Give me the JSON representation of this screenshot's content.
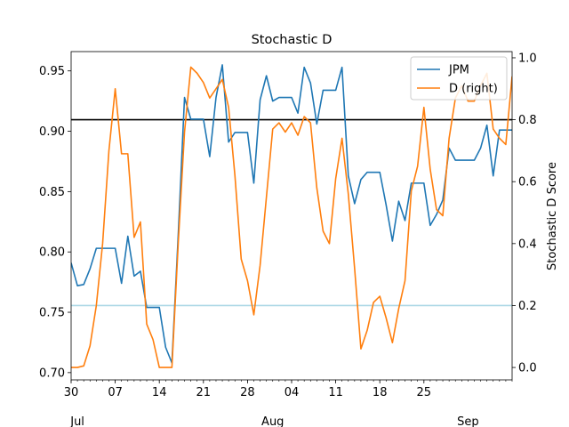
{
  "chart_data": {
    "type": "line",
    "title": "Stochastic D",
    "xlabel": "",
    "ylabel_left": "",
    "ylabel_right": "Stochastic D Score",
    "x_ticks": [
      {
        "day": 0,
        "label": "30"
      },
      {
        "day": 7,
        "label": "07"
      },
      {
        "day": 14,
        "label": "14"
      },
      {
        "day": 21,
        "label": "21"
      },
      {
        "day": 28,
        "label": "28"
      },
      {
        "day": 35,
        "label": "04"
      },
      {
        "day": 42,
        "label": "11"
      },
      {
        "day": 49,
        "label": "18"
      },
      {
        "day": 56,
        "label": "25"
      }
    ],
    "month_labels": [
      {
        "day": 1,
        "label": "Jul"
      },
      {
        "day": 32,
        "label": "Aug"
      },
      {
        "day": 63,
        "label": "Sep"
      }
    ],
    "xlim": [
      0,
      70
    ],
    "y_left": {
      "lim": [
        0.694,
        0.966
      ],
      "ticks": [
        0.7,
        0.75,
        0.8,
        0.85,
        0.9,
        0.95
      ],
      "tick_labels": [
        "0.70",
        "0.75",
        "0.80",
        "0.85",
        "0.90",
        "0.95"
      ]
    },
    "y_right": {
      "lim": [
        -0.04,
        1.02
      ],
      "ticks": [
        0.0,
        0.2,
        0.4,
        0.6,
        0.8,
        1.0
      ],
      "tick_labels": [
        "0.0",
        "0.2",
        "0.4",
        "0.6",
        "0.8",
        "1.0"
      ]
    },
    "hlines": [
      {
        "axis": "right",
        "value": 0.8,
        "color": "#000000"
      },
      {
        "axis": "right",
        "value": 0.2,
        "color": "#add8e6"
      }
    ],
    "legend": {
      "position": "top-right",
      "entries": [
        "JPM",
        "D (right)"
      ]
    },
    "series": [
      {
        "name": "JPM",
        "axis": "left",
        "color": "#1f77b4",
        "x": [
          0,
          1,
          2,
          3,
          4,
          5,
          6,
          7,
          8,
          9,
          10,
          11,
          12,
          13,
          14,
          15,
          16,
          17,
          18,
          19,
          20,
          21,
          22,
          23,
          24,
          25,
          26,
          27,
          28,
          29,
          30,
          31,
          32,
          33,
          34,
          35,
          36,
          37,
          38,
          39,
          40,
          41,
          42,
          43,
          44,
          45,
          46,
          47,
          48,
          49,
          50,
          51,
          52,
          53,
          54,
          55,
          56,
          57,
          58,
          59,
          60,
          61,
          62,
          63,
          64,
          65,
          66,
          67,
          68,
          69,
          70
        ],
        "values": [
          0.791,
          0.772,
          0.773,
          0.786,
          0.803,
          0.803,
          0.803,
          0.803,
          0.774,
          0.813,
          0.78,
          0.784,
          0.754,
          0.754,
          0.754,
          0.721,
          0.708,
          0.814,
          0.928,
          0.91,
          0.91,
          0.91,
          0.879,
          0.928,
          0.955,
          0.891,
          0.899,
          0.899,
          0.899,
          0.857,
          0.926,
          0.946,
          0.925,
          0.928,
          0.928,
          0.928,
          0.915,
          0.953,
          0.94,
          0.906,
          0.934,
          0.934,
          0.934,
          0.953,
          0.863,
          0.84,
          0.86,
          0.866,
          0.866,
          0.866,
          0.839,
          0.809,
          0.842,
          0.826,
          0.857,
          0.857,
          0.857,
          0.822,
          0.831,
          0.843,
          0.886,
          0.876,
          0.876,
          0.876,
          0.876,
          0.886,
          0.905,
          0.863,
          0.901,
          0.901,
          0.901
        ]
      },
      {
        "name": "D (right)",
        "axis": "right",
        "color": "#ff7f0e",
        "x": [
          0,
          1,
          2,
          3,
          4,
          5,
          6,
          7,
          8,
          9,
          10,
          11,
          12,
          13,
          14,
          15,
          16,
          17,
          18,
          19,
          20,
          21,
          22,
          23,
          24,
          25,
          26,
          27,
          28,
          29,
          30,
          31,
          32,
          33,
          34,
          35,
          36,
          37,
          38,
          39,
          40,
          41,
          42,
          43,
          44,
          45,
          46,
          47,
          48,
          49,
          50,
          51,
          52,
          53,
          54,
          55,
          56,
          57,
          58,
          59,
          60,
          61,
          62,
          63,
          64,
          65,
          66,
          67,
          68,
          69,
          70
        ],
        "values": [
          0.0,
          0.0,
          0.005,
          0.07,
          0.2,
          0.4,
          0.7,
          0.9,
          0.69,
          0.69,
          0.42,
          0.47,
          0.14,
          0.09,
          0.0,
          0.0,
          0.0,
          0.4,
          0.76,
          0.97,
          0.95,
          0.92,
          0.87,
          0.9,
          0.93,
          0.84,
          0.62,
          0.35,
          0.28,
          0.17,
          0.33,
          0.55,
          0.77,
          0.79,
          0.76,
          0.79,
          0.75,
          0.81,
          0.79,
          0.58,
          0.44,
          0.4,
          0.61,
          0.74,
          0.56,
          0.32,
          0.06,
          0.12,
          0.21,
          0.23,
          0.16,
          0.08,
          0.19,
          0.28,
          0.57,
          0.65,
          0.84,
          0.64,
          0.51,
          0.49,
          0.74,
          0.87,
          0.91,
          0.86,
          0.86,
          0.91,
          0.95,
          0.77,
          0.74,
          0.72,
          0.94
        ]
      }
    ]
  }
}
